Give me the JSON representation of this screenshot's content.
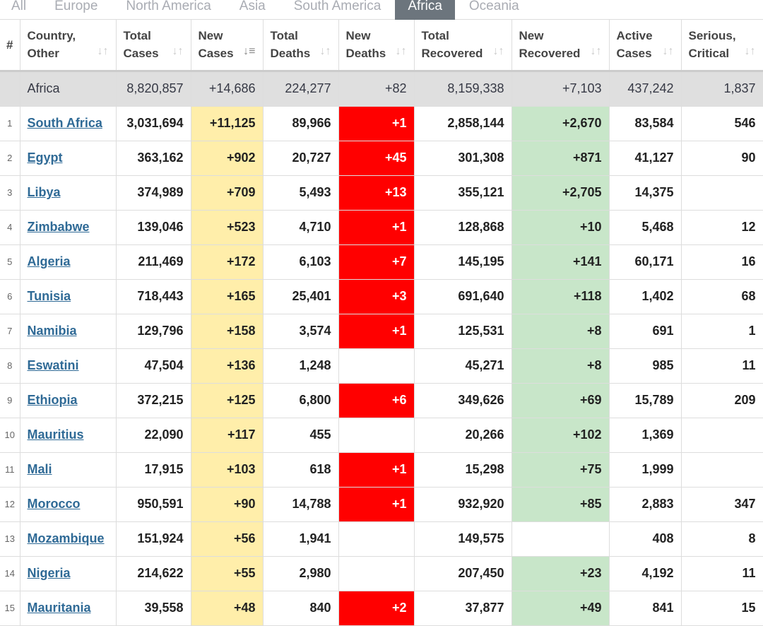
{
  "tabs": [
    "All",
    "Europe",
    "North America",
    "Asia",
    "South America",
    "Africa",
    "Oceania"
  ],
  "active_tab": "Africa",
  "colors": {
    "new_cases": "#ffeeaa",
    "new_deaths": "#ff0000",
    "new_recovered": "#c8e6c9"
  },
  "headers": [
    {
      "l1": "#",
      "l2": ""
    },
    {
      "l1": "Country,",
      "l2": "Other"
    },
    {
      "l1": "Total",
      "l2": "Cases"
    },
    {
      "l1": "New",
      "l2": "Cases"
    },
    {
      "l1": "Total",
      "l2": "Deaths"
    },
    {
      "l1": "New",
      "l2": "Deaths"
    },
    {
      "l1": "Total",
      "l2": "Recovered"
    },
    {
      "l1": "New",
      "l2": "Recovered"
    },
    {
      "l1": "Active",
      "l2": "Cases"
    },
    {
      "l1": "Serious,",
      "l2": "Critical"
    }
  ],
  "total": [
    "",
    "Africa",
    "8,820,857",
    "+14,686",
    "224,277",
    "+82",
    "8,159,338",
    "+7,103",
    "437,242",
    "1,837"
  ],
  "rows": [
    [
      "1",
      "South Africa",
      "3,031,694",
      "+11,125",
      "89,966",
      "+1",
      "2,858,144",
      "+2,670",
      "83,584",
      "546"
    ],
    [
      "2",
      "Egypt",
      "363,162",
      "+902",
      "20,727",
      "+45",
      "301,308",
      "+871",
      "41,127",
      "90"
    ],
    [
      "3",
      "Libya",
      "374,989",
      "+709",
      "5,493",
      "+13",
      "355,121",
      "+2,705",
      "14,375",
      ""
    ],
    [
      "4",
      "Zimbabwe",
      "139,046",
      "+523",
      "4,710",
      "+1",
      "128,868",
      "+10",
      "5,468",
      "12"
    ],
    [
      "5",
      "Algeria",
      "211,469",
      "+172",
      "6,103",
      "+7",
      "145,195",
      "+141",
      "60,171",
      "16"
    ],
    [
      "6",
      "Tunisia",
      "718,443",
      "+165",
      "25,401",
      "+3",
      "691,640",
      "+118",
      "1,402",
      "68"
    ],
    [
      "7",
      "Namibia",
      "129,796",
      "+158",
      "3,574",
      "+1",
      "125,531",
      "+8",
      "691",
      "1"
    ],
    [
      "8",
      "Eswatini",
      "47,504",
      "+136",
      "1,248",
      "",
      "45,271",
      "+8",
      "985",
      "11"
    ],
    [
      "9",
      "Ethiopia",
      "372,215",
      "+125",
      "6,800",
      "+6",
      "349,626",
      "+69",
      "15,789",
      "209"
    ],
    [
      "10",
      "Mauritius",
      "22,090",
      "+117",
      "455",
      "",
      "20,266",
      "+102",
      "1,369",
      ""
    ],
    [
      "11",
      "Mali",
      "17,915",
      "+103",
      "618",
      "+1",
      "15,298",
      "+75",
      "1,999",
      ""
    ],
    [
      "12",
      "Morocco",
      "950,591",
      "+90",
      "14,788",
      "+1",
      "932,920",
      "+85",
      "2,883",
      "347"
    ],
    [
      "13",
      "Mozambique",
      "151,924",
      "+56",
      "1,941",
      "",
      "149,575",
      "",
      "408",
      "8"
    ],
    [
      "14",
      "Nigeria",
      "214,622",
      "+55",
      "2,980",
      "",
      "207,450",
      "+23",
      "4,192",
      "11"
    ],
    [
      "15",
      "Mauritania",
      "39,558",
      "+48",
      "840",
      "+2",
      "37,877",
      "+49",
      "841",
      "15"
    ]
  ]
}
